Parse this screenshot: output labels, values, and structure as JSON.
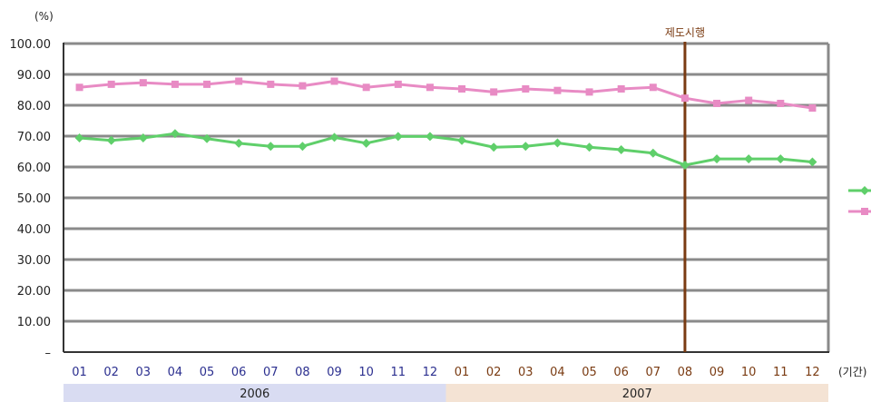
{
  "chart_data": {
    "type": "line",
    "title": "",
    "ylabel": "(%)",
    "xlabel": "(기간)",
    "ylim": [
      0,
      100
    ],
    "yticks": [
      "–",
      "10.00",
      "20.00",
      "30.00",
      "40.00",
      "50.00",
      "60.00",
      "70.00",
      "80.00",
      "90.00",
      "100.00"
    ],
    "grid": true,
    "legend": "right",
    "categories": [
      "01",
      "02",
      "03",
      "04",
      "05",
      "06",
      "07",
      "08",
      "09",
      "10",
      "11",
      "12",
      "01",
      "02",
      "03",
      "04",
      "05",
      "06",
      "07",
      "08",
      "09",
      "10",
      "11",
      "12"
    ],
    "year_groups": [
      {
        "label": "2006",
        "start": 0,
        "end": 11,
        "color": "#d9dcf2",
        "tick_color": "#2b2f8f"
      },
      {
        "label": "2007",
        "start": 12,
        "end": 23,
        "color": "#f4e3d4",
        "tick_color": "#7a3b12"
      }
    ],
    "annotation": {
      "label": "제도시행",
      "index": 19,
      "color": "#7a3b12"
    },
    "series": [
      {
        "marker": "square",
        "color": "#e88bc4",
        "values": [
          85.8,
          86.8,
          87.3,
          86.8,
          86.8,
          87.8,
          86.8,
          86.3,
          87.8,
          85.8,
          86.8,
          85.8,
          85.3,
          84.3,
          85.3,
          84.8,
          84.3,
          85.3,
          85.8,
          82.3,
          80.6,
          81.6,
          80.6,
          79.1
        ]
      },
      {
        "marker": "diamond",
        "color": "#5fcf6a",
        "values": [
          69.4,
          68.6,
          69.4,
          70.8,
          69.2,
          67.7,
          66.7,
          66.7,
          69.6,
          67.7,
          69.9,
          69.9,
          68.6,
          66.4,
          66.7,
          67.8,
          66.4,
          65.6,
          64.5,
          60.6,
          62.6,
          62.6,
          62.6,
          61.6
        ]
      }
    ]
  }
}
